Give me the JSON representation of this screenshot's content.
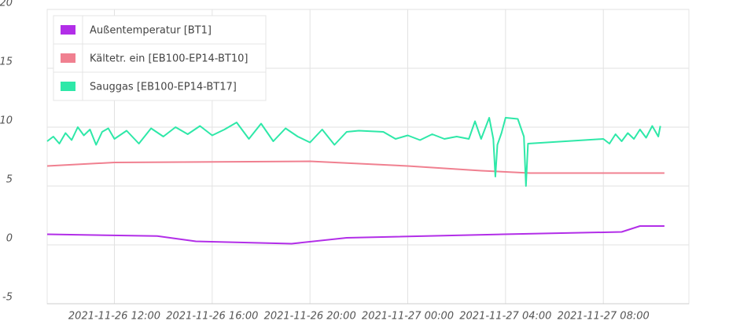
{
  "chart_data": {
    "type": "line",
    "xlim": [
      "2021-11-26 09:15",
      "2021-11-27 11:30"
    ],
    "xticks": [
      "2021-11-26 12:00",
      "2021-11-26 16:00",
      "2021-11-26 20:00",
      "2021-11-27 00:00",
      "2021-11-27 04:00",
      "2021-11-27 08:00"
    ],
    "ylim": [
      -5,
      20
    ],
    "yticks": [
      -5,
      0,
      5,
      10,
      15,
      20
    ],
    "grid": true,
    "legend": "top-left",
    "series": [
      {
        "name": "Außentemperatur [BT1]",
        "color": "#b22ee8",
        "x": [
          "2021-11-26 09:15",
          "2021-11-26 13:45",
          "2021-11-26 15:20",
          "2021-11-26 19:15",
          "2021-11-26 21:30",
          "2021-11-27 03:55",
          "2021-11-27 08:45",
          "2021-11-27 09:30",
          "2021-11-27 10:30"
        ],
        "values": [
          0.9,
          0.75,
          0.3,
          0.1,
          0.6,
          0.9,
          1.1,
          1.6,
          1.6
        ]
      },
      {
        "name": "Kältetr. ein [EB100-EP14-BT10]",
        "color": "#f08090",
        "x": [
          "2021-11-26 09:15",
          "2021-11-26 12:00",
          "2021-11-26 20:00",
          "2021-11-27 00:00",
          "2021-11-27 03:00",
          "2021-11-27 05:00",
          "2021-11-27 10:30"
        ],
        "values": [
          6.7,
          7.0,
          7.1,
          6.7,
          6.3,
          6.1,
          6.1
        ]
      },
      {
        "name": "Sauggas [EB100-EP14-BT17]",
        "color": "#2ee8a8",
        "x": [
          "2021-11-26 09:15",
          "2021-11-26 09:30",
          "2021-11-26 09:45",
          "2021-11-26 10:00",
          "2021-11-26 10:15",
          "2021-11-26 10:30",
          "2021-11-26 10:45",
          "2021-11-26 11:00",
          "2021-11-26 11:15",
          "2021-11-26 11:30",
          "2021-11-26 11:45",
          "2021-11-26 12:00",
          "2021-11-26 12:30",
          "2021-11-26 13:00",
          "2021-11-26 13:30",
          "2021-11-26 14:00",
          "2021-11-26 14:30",
          "2021-11-26 15:00",
          "2021-11-26 15:30",
          "2021-11-26 16:00",
          "2021-11-26 16:30",
          "2021-11-26 17:00",
          "2021-11-26 17:30",
          "2021-11-26 18:00",
          "2021-11-26 18:30",
          "2021-11-26 19:00",
          "2021-11-26 19:30",
          "2021-11-26 20:00",
          "2021-11-26 20:30",
          "2021-11-26 21:00",
          "2021-11-26 21:30",
          "2021-11-26 22:00",
          "2021-11-26 23:00",
          "2021-11-26 23:30",
          "2021-11-27 00:00",
          "2021-11-27 00:30",
          "2021-11-27 01:00",
          "2021-11-27 01:30",
          "2021-11-27 02:00",
          "2021-11-27 02:30",
          "2021-11-27 02:45",
          "2021-11-27 03:00",
          "2021-11-27 03:20",
          "2021-11-27 03:30",
          "2021-11-27 03:35",
          "2021-11-27 03:40",
          "2021-11-27 03:50",
          "2021-11-27 04:00",
          "2021-11-27 04:30",
          "2021-11-27 04:45",
          "2021-11-27 04:50",
          "2021-11-27 04:55",
          "2021-11-27 08:00",
          "2021-11-27 08:15",
          "2021-11-27 08:30",
          "2021-11-27 08:45",
          "2021-11-27 09:00",
          "2021-11-27 09:15",
          "2021-11-27 09:30",
          "2021-11-27 09:45",
          "2021-11-27 10:00",
          "2021-11-27 10:15",
          "2021-11-27 10:20"
        ],
        "values": [
          8.8,
          9.2,
          8.6,
          9.5,
          8.9,
          10.0,
          9.3,
          9.8,
          8.5,
          9.6,
          9.9,
          9.0,
          9.7,
          8.6,
          9.9,
          9.2,
          10.0,
          9.4,
          10.1,
          9.3,
          9.8,
          10.4,
          9.0,
          10.3,
          8.8,
          9.9,
          9.2,
          8.7,
          9.8,
          8.5,
          9.6,
          9.7,
          9.6,
          9.0,
          9.3,
          8.9,
          9.4,
          9.0,
          9.2,
          9.0,
          10.5,
          9.0,
          10.8,
          9.0,
          5.8,
          8.5,
          9.5,
          10.8,
          10.7,
          9.2,
          5.0,
          8.6,
          9.0,
          8.6,
          9.4,
          8.8,
          9.5,
          9.0,
          9.8,
          9.1,
          10.1,
          9.2,
          10.1
        ]
      }
    ]
  }
}
